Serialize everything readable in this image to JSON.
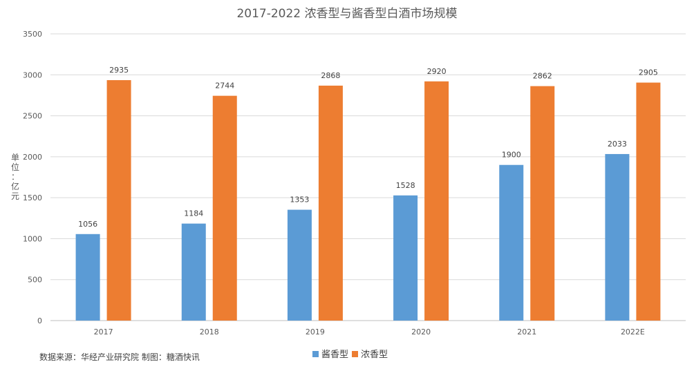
{
  "chart_data": {
    "type": "bar",
    "title": "2017-2022 浓香型与酱香型白酒市场规模",
    "ylabel": "单位：亿元",
    "xlabel": "",
    "ylim": [
      0,
      3500
    ],
    "yticks": [
      0,
      500,
      1000,
      1500,
      2000,
      2500,
      3000,
      3500
    ],
    "grid": true,
    "legend_position": "bottom",
    "categories": [
      "2017",
      "2018",
      "2019",
      "2020",
      "2021",
      "2022E"
    ],
    "series": [
      {
        "name": "酱香型",
        "color": "#5b9bd5",
        "values": [
          1056,
          1184,
          1353,
          1528,
          1900,
          2033
        ]
      },
      {
        "name": "浓香型",
        "color": "#ed7d31",
        "values": [
          2935,
          2744,
          2868,
          2920,
          2862,
          2905
        ]
      }
    ]
  },
  "source_note": "数据来源：华经产业研究院 制图：糖酒快讯"
}
